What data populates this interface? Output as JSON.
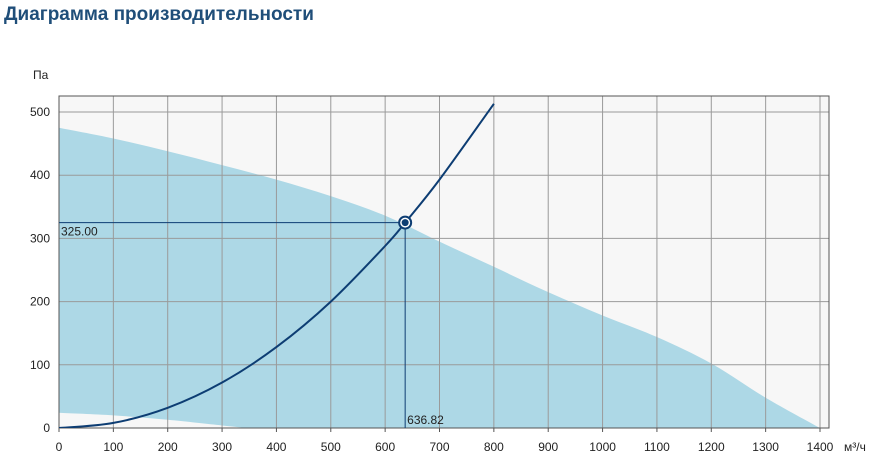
{
  "title": "Диаграмма производительности",
  "chart_data": {
    "type": "area",
    "title": "Диаграмма производительности",
    "xlabel": "м³/ч",
    "ylabel": "Па",
    "xlim": [
      0,
      1400
    ],
    "ylim": [
      0,
      500
    ],
    "x_ticks": [
      0,
      100,
      200,
      300,
      400,
      500,
      600,
      700,
      800,
      900,
      1000,
      1100,
      1200,
      1300,
      1400
    ],
    "y_ticks": [
      0,
      100,
      200,
      300,
      400,
      500
    ],
    "grid": true,
    "operating_area": {
      "upper": [
        {
          "x": 0,
          "y": 475
        },
        {
          "x": 100,
          "y": 458
        },
        {
          "x": 200,
          "y": 438
        },
        {
          "x": 300,
          "y": 416
        },
        {
          "x": 400,
          "y": 393
        },
        {
          "x": 500,
          "y": 367
        },
        {
          "x": 600,
          "y": 336
        },
        {
          "x": 700,
          "y": 295
        },
        {
          "x": 800,
          "y": 255
        },
        {
          "x": 900,
          "y": 215
        },
        {
          "x": 1000,
          "y": 178
        },
        {
          "x": 1100,
          "y": 144
        },
        {
          "x": 1200,
          "y": 102
        },
        {
          "x": 1300,
          "y": 48
        },
        {
          "x": 1400,
          "y": 0
        }
      ],
      "lower": [
        {
          "x": 0,
          "y": 24
        },
        {
          "x": 100,
          "y": 20
        },
        {
          "x": 200,
          "y": 13
        },
        {
          "x": 300,
          "y": 4
        },
        {
          "x": 345,
          "y": 0
        }
      ],
      "color": "#add8e6"
    },
    "system_curve": {
      "color": "#0d3d73",
      "points": [
        {
          "x": 0,
          "y": 0
        },
        {
          "x": 100,
          "y": 8
        },
        {
          "x": 200,
          "y": 32
        },
        {
          "x": 300,
          "y": 72
        },
        {
          "x": 400,
          "y": 128
        },
        {
          "x": 500,
          "y": 200
        },
        {
          "x": 600,
          "y": 288
        },
        {
          "x": 636.82,
          "y": 325
        },
        {
          "x": 700,
          "y": 393
        },
        {
          "x": 800,
          "y": 513
        }
      ]
    },
    "operating_point": {
      "x": 636.82,
      "y": 325.0,
      "x_label": "636.82",
      "y_label": "325.00"
    },
    "colors": {
      "grid": "#9a9a9a",
      "background": "#f7f7f7",
      "axis": "#555555"
    }
  }
}
